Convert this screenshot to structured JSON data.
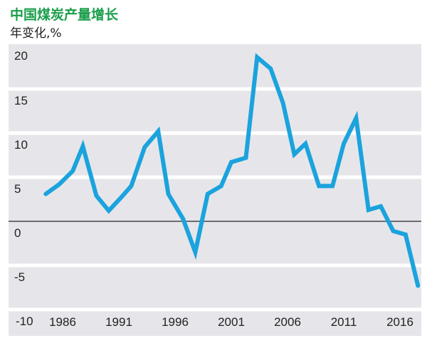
{
  "chart_data": {
    "type": "line",
    "title": "中国煤炭产量增长",
    "subtitle": "年变化,%",
    "xlabel": "",
    "ylabel": "",
    "x_ticks": [
      1986,
      1991,
      1996,
      2001,
      2006,
      2011,
      2016
    ],
    "y_ticks": [
      20,
      15,
      10,
      5,
      0,
      -5,
      -10
    ],
    "ylim": [
      -10,
      20
    ],
    "grid": "horizontal",
    "colors": {
      "line": "#1ba3dd",
      "title": "#1a9e4a",
      "background": "#e6e6ea",
      "zero_line": "#444444"
    },
    "series": [
      {
        "x": [
          1984.5,
          1985.7,
          1986.9,
          1987.8,
          1989.0,
          1990.1,
          1991.2,
          1992.1,
          1993.3,
          1994.5,
          1995.4,
          1996.7,
          1997.8,
          1998.9,
          2000.1,
          2001.0,
          2002.3,
          2003.3,
          2004.5,
          2005.6,
          2006.6,
          2007.6,
          2008.8,
          2010.0,
          2011.0,
          2012.1,
          2013.2,
          2014.3,
          2015.4,
          2016.5,
          2017.6
        ],
        "values": [
          3.1,
          4.2,
          5.7,
          8.5,
          2.9,
          1.2,
          2.7,
          4.0,
          8.4,
          10.2,
          3.1,
          0.3,
          -3.5,
          3.1,
          4.0,
          6.7,
          7.2,
          18.6,
          17.3,
          13.4,
          7.6,
          8.8,
          4.0,
          4.0,
          8.8,
          11.7,
          1.3,
          1.7,
          -1.1,
          -1.5,
          -7.3
        ]
      }
    ]
  }
}
